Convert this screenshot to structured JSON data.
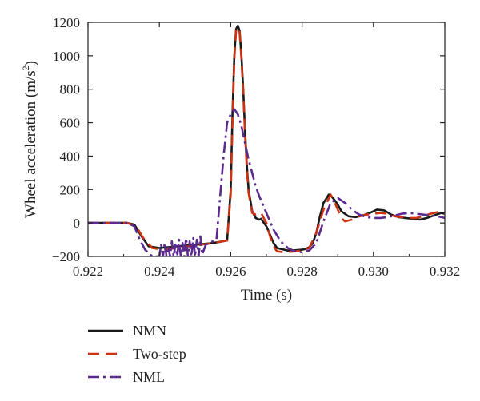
{
  "chart_data": {
    "type": "line",
    "title": "",
    "xlabel": "Time (s)",
    "ylabel": "Wheel acceleration (m/s²)",
    "ylabel_parts": {
      "main": "Wheel acceleration (m/s",
      "sup": "2",
      "close": ")"
    },
    "xlim": [
      0.922,
      0.932
    ],
    "ylim": [
      -200,
      1200
    ],
    "xticks": [
      0.922,
      0.924,
      0.926,
      0.928,
      0.93,
      0.932
    ],
    "xtick_labels": [
      "0.922",
      "0.924",
      "0.926",
      "0.928",
      "0.930",
      "0.932"
    ],
    "yticks": [
      -200,
      0,
      200,
      400,
      600,
      800,
      1000,
      1200
    ],
    "ytick_labels": [
      "−200",
      "0",
      "200",
      "400",
      "600",
      "800",
      "1000",
      "1200"
    ],
    "grid": false,
    "legend_position": "bottom-left, below plot",
    "series": [
      {
        "name": "NMN",
        "color": "#1a1a1a",
        "dash": "solid",
        "x": [
          0.922,
          0.9231,
          0.9233,
          0.9235,
          0.9237,
          0.924,
          0.9245,
          0.925,
          0.9255,
          0.9259,
          0.926,
          0.92605,
          0.9261,
          0.92615,
          0.9262,
          0.92625,
          0.9263,
          0.92635,
          0.9264,
          0.92645,
          0.9265,
          0.9266,
          0.9267,
          0.9268,
          0.92685,
          0.9269,
          0.927,
          0.9271,
          0.9272,
          0.9273,
          0.9274,
          0.9275,
          0.9276,
          0.9278,
          0.928,
          0.9281,
          0.9282,
          0.9283,
          0.9284,
          0.9285,
          0.9286,
          0.92875,
          0.9288,
          0.9289,
          0.929,
          0.9291,
          0.9293,
          0.9295,
          0.9297,
          0.9299,
          0.9301,
          0.9303,
          0.9305,
          0.9307,
          0.9309,
          0.9311,
          0.9313,
          0.9315,
          0.9317,
          0.9319,
          0.9321
        ],
        "y": [
          0,
          0,
          -10,
          -80,
          -140,
          -150,
          -140,
          -130,
          -120,
          -105,
          200,
          650,
          1000,
          1160,
          1180,
          1150,
          1000,
          800,
          560,
          350,
          200,
          70,
          30,
          20,
          25,
          10,
          -20,
          -70,
          -120,
          -150,
          -155,
          -160,
          -165,
          -163,
          -160,
          -155,
          -145,
          -120,
          -60,
          40,
          120,
          170,
          165,
          140,
          110,
          70,
          40,
          35,
          45,
          60,
          80,
          75,
          50,
          35,
          30,
          25,
          20,
          30,
          45,
          60,
          50
        ]
      },
      {
        "name": "Two-step",
        "color": "#cc3311",
        "dash": "14,8",
        "x": [
          0.922,
          0.9231,
          0.92335,
          0.92355,
          0.9238,
          0.9241,
          0.9245,
          0.925,
          0.9255,
          0.9259,
          0.926,
          0.92605,
          0.9261,
          0.92615,
          0.9262,
          0.92625,
          0.9263,
          0.92635,
          0.9264,
          0.92645,
          0.9265,
          0.9266,
          0.9267,
          0.92685,
          0.927,
          0.9271,
          0.9272,
          0.9273,
          0.9275,
          0.9278,
          0.928,
          0.9282,
          0.9284,
          0.9286,
          0.9288,
          0.9289,
          0.929,
          0.9291,
          0.9292,
          0.9294,
          0.9296,
          0.9298,
          0.93,
          0.9302,
          0.9304,
          0.9306,
          0.9308,
          0.931,
          0.9312,
          0.9314,
          0.9316,
          0.9318,
          0.932
        ],
        "y": [
          0,
          0,
          -20,
          -90,
          -150,
          -160,
          -150,
          -135,
          -120,
          -105,
          170,
          600,
          980,
          1150,
          1170,
          1140,
          980,
          780,
          540,
          330,
          180,
          60,
          50,
          60,
          0,
          -80,
          -140,
          -170,
          -175,
          -170,
          -165,
          -150,
          -60,
          80,
          170,
          130,
          80,
          30,
          10,
          20,
          40,
          50,
          55,
          60,
          55,
          40,
          35,
          30,
          30,
          40,
          55,
          65,
          55
        ]
      },
      {
        "name": "NML",
        "color": "#5b2a8f",
        "dash": "14,5,3,5",
        "x": [
          0.922,
          0.9231,
          0.9233,
          0.92345,
          0.9236,
          0.9238,
          0.924,
          0.92405,
          0.9241,
          0.92415,
          0.9242,
          0.92425,
          0.9243,
          0.92435,
          0.9244,
          0.92445,
          0.9245,
          0.92455,
          0.9246,
          0.92465,
          0.9247,
          0.92475,
          0.9248,
          0.92485,
          0.9249,
          0.92495,
          0.925,
          0.92505,
          0.9251,
          0.92515,
          0.9252,
          0.9253,
          0.9254,
          0.9256,
          0.9257,
          0.9258,
          0.9259,
          0.926,
          0.9261,
          0.9262,
          0.9263,
          0.9264,
          0.9265,
          0.9266,
          0.9267,
          0.9268,
          0.927,
          0.9272,
          0.9274,
          0.9276,
          0.9278,
          0.928,
          0.9282,
          0.9284,
          0.9286,
          0.9288,
          0.929,
          0.9292,
          0.9294,
          0.9296,
          0.9298,
          0.93,
          0.9302,
          0.9304,
          0.9306,
          0.9308,
          0.931,
          0.9312,
          0.9314,
          0.9316,
          0.9318,
          0.932
        ],
        "y": [
          0,
          0,
          -20,
          -100,
          -160,
          -200,
          -200,
          -130,
          -200,
          -120,
          -200,
          -140,
          -200,
          -110,
          -200,
          -130,
          -200,
          -100,
          -200,
          -120,
          -200,
          -90,
          -200,
          -110,
          -200,
          -90,
          -200,
          -100,
          -200,
          -80,
          -190,
          -130,
          -120,
          -100,
          150,
          400,
          600,
          650,
          680,
          650,
          580,
          480,
          380,
          300,
          220,
          160,
          60,
          -40,
          -110,
          -150,
          -170,
          -175,
          -165,
          -120,
          10,
          120,
          150,
          120,
          80,
          50,
          35,
          30,
          30,
          35,
          45,
          55,
          60,
          55,
          50,
          45,
          40,
          30
        ]
      }
    ]
  }
}
